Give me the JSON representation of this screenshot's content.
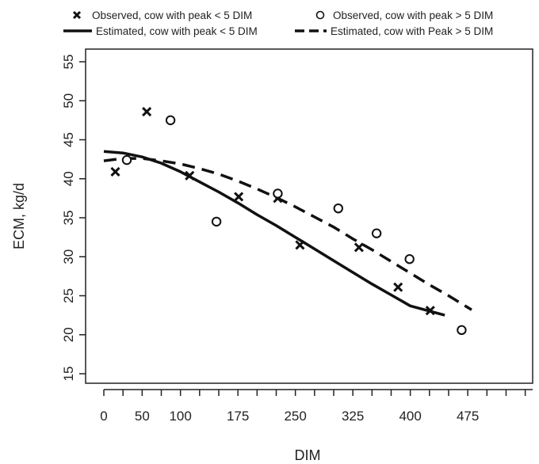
{
  "chart_data": {
    "type": "scatter",
    "xlabel": "DIM",
    "ylabel": "ECM, kg/d",
    "xlim": [
      0,
      500
    ],
    "ylim": [
      15,
      55
    ],
    "x_ticks": [
      0,
      50,
      100,
      175,
      250,
      325,
      400,
      475
    ],
    "y_ticks": [
      15,
      20,
      25,
      30,
      35,
      40,
      45,
      50,
      55
    ],
    "legend": {
      "placement": "top",
      "items": [
        "Observed, cow with peak < 5 DIM",
        "Observed, cow with peak > 5 DIM",
        "Estimated, cow with peak < 5 DIM",
        "Estimated, cow with Peak > 5 DIM"
      ]
    },
    "observed_early": {
      "name": "Observed, cow with peak < 5 DIM",
      "marker": "x",
      "points": [
        [
          15,
          40.9
        ],
        [
          56,
          48.6
        ],
        [
          112,
          40.4
        ],
        [
          176,
          37.7
        ],
        [
          227,
          37.5
        ],
        [
          256,
          31.5
        ],
        [
          333,
          31.2
        ],
        [
          384,
          26.1
        ],
        [
          426,
          23.1
        ]
      ]
    },
    "observed_late": {
      "name": "Observed, cow with peak > 5 DIM",
      "marker": "o",
      "points": [
        [
          30,
          42.4
        ],
        [
          87,
          47.5
        ],
        [
          147,
          34.5
        ],
        [
          227,
          38.1
        ],
        [
          306,
          36.2
        ],
        [
          356,
          33.0
        ],
        [
          399,
          29.7
        ],
        [
          467,
          20.6
        ]
      ]
    },
    "estimated_early": {
      "name": "Estimated, cow with peak < 5 DIM",
      "style": "solid",
      "points": [
        [
          0,
          43.5
        ],
        [
          25,
          43.3
        ],
        [
          50,
          42.8
        ],
        [
          75,
          42.0
        ],
        [
          100,
          40.9
        ],
        [
          125,
          39.6
        ],
        [
          150,
          38.3
        ],
        [
          175,
          36.9
        ],
        [
          200,
          35.4
        ],
        [
          225,
          34.0
        ],
        [
          250,
          32.5
        ],
        [
          275,
          31.0
        ],
        [
          300,
          29.5
        ],
        [
          325,
          28.0
        ],
        [
          350,
          26.5
        ],
        [
          375,
          25.1
        ],
        [
          400,
          23.7
        ],
        [
          445,
          22.5
        ]
      ]
    },
    "estimated_late": {
      "name": "Estimated, cow with Peak > 5 DIM",
      "style": "dashed",
      "points": [
        [
          0,
          42.3
        ],
        [
          25,
          42.6
        ],
        [
          50,
          42.6
        ],
        [
          75,
          42.3
        ],
        [
          100,
          41.9
        ],
        [
          125,
          41.3
        ],
        [
          150,
          40.6
        ],
        [
          175,
          39.7
        ],
        [
          200,
          38.7
        ],
        [
          225,
          37.6
        ],
        [
          250,
          36.4
        ],
        [
          275,
          35.1
        ],
        [
          300,
          33.8
        ],
        [
          325,
          32.3
        ],
        [
          350,
          30.9
        ],
        [
          375,
          29.4
        ],
        [
          400,
          27.9
        ],
        [
          425,
          26.4
        ],
        [
          450,
          25.0
        ],
        [
          475,
          23.5
        ],
        [
          480,
          23.2
        ]
      ]
    }
  }
}
